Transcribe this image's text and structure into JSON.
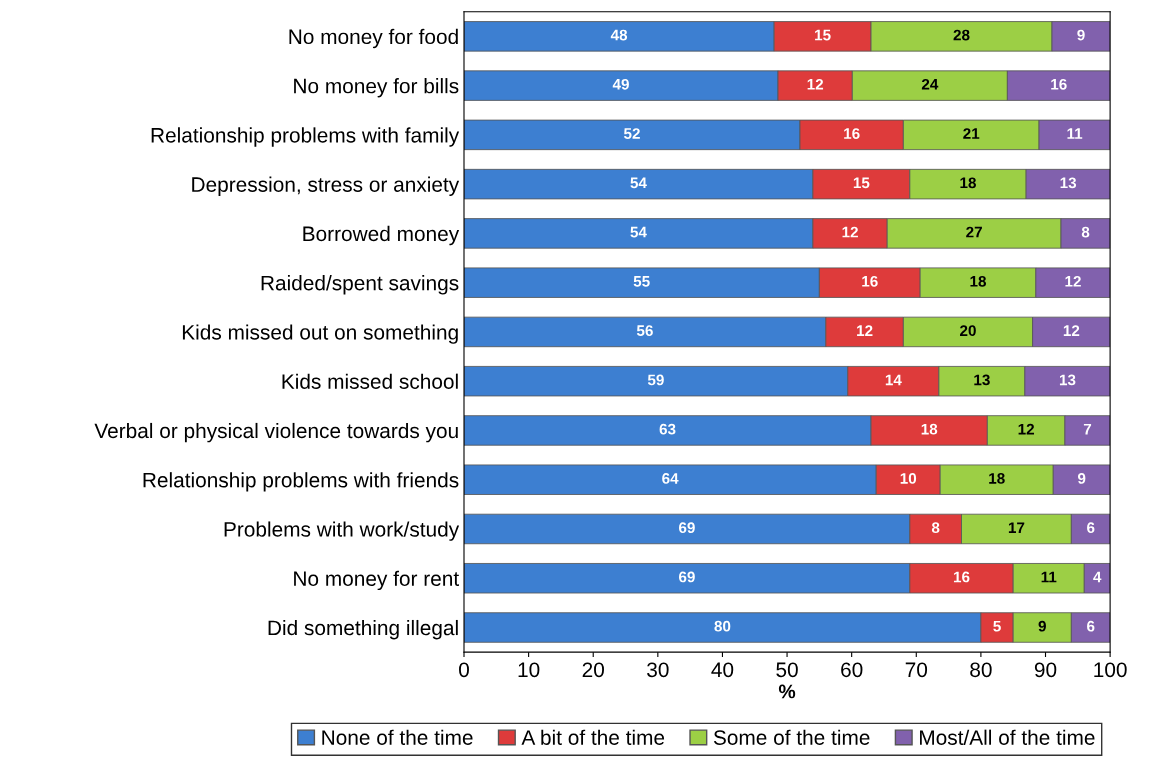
{
  "chart_data": {
    "type": "bar",
    "orientation": "horizontal",
    "stacked": true,
    "xlabel": "%",
    "categories": [
      "No money for food",
      "No money for bills",
      "Relationship problems with family",
      "Depression, stress or anxiety",
      "Borrowed money",
      "Raided/spent savings",
      "Kids missed out on something",
      "Kids missed school",
      "Verbal or physical violence towards you",
      "Relationship problems with friends",
      "Problems with work/study",
      "No money for rent",
      "Did something illegal"
    ],
    "series": [
      {
        "name": "None of the time",
        "color": "#3d7fd1",
        "values": [
          48,
          48.6,
          52,
          54,
          54.0,
          55.0,
          56,
          59.4,
          63,
          63.8,
          69,
          69,
          80
        ],
        "value_labels": [
          "48",
          "49",
          "52",
          "54",
          "54",
          "55",
          "56",
          "59",
          "63",
          "64",
          "69",
          "69",
          "80"
        ]
      },
      {
        "name": "A bit of the time",
        "color": "#de3b3b",
        "values": [
          15,
          11.5,
          16,
          15,
          11.5,
          15.6,
          12,
          14.1,
          18,
          9.9,
          8,
          16,
          5
        ],
        "value_labels": [
          "15",
          "12",
          "16",
          "15",
          "12",
          "16",
          "12",
          "14",
          "18",
          "10",
          "8",
          "16",
          "5"
        ]
      },
      {
        "name": "Some of the time",
        "color": "#9ccf45",
        "values": [
          28,
          24.0,
          21,
          18,
          26.9,
          17.9,
          20,
          13.3,
          12,
          17.5,
          17,
          11,
          9
        ],
        "value_labels": [
          "28",
          "24",
          "21",
          "18",
          "27",
          "18",
          "20",
          "13",
          "12",
          "18",
          "17",
          "11",
          "9"
        ]
      },
      {
        "name": "Most/All of the time",
        "color": "#8161ad",
        "values": [
          9,
          15.9,
          11,
          13,
          7.6,
          11.5,
          12,
          13.2,
          7,
          8.8,
          6,
          4,
          6
        ],
        "value_labels": [
          "9",
          "16",
          "11",
          "13",
          "8",
          "12",
          "12",
          "13",
          "7",
          "9",
          "6",
          "4",
          "6"
        ]
      }
    ],
    "xlim": [
      0,
      100
    ],
    "xticks": [
      0,
      10,
      20,
      30,
      40,
      50,
      60,
      70,
      80,
      90,
      100
    ],
    "legend": "bottom"
  }
}
